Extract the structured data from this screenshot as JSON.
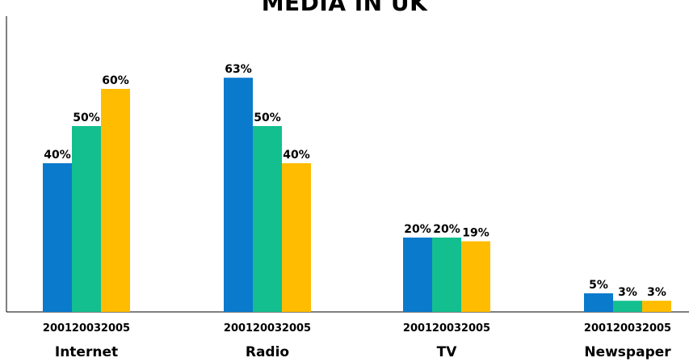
{
  "chart_data": {
    "type": "bar",
    "title": "MEDIA IN UK",
    "categories": [
      "Internet",
      "Radio",
      "TV",
      "Newspaper"
    ],
    "years": [
      "2001",
      "2003",
      "2005"
    ],
    "series": [
      {
        "name": "2001",
        "values": [
          40,
          63,
          20,
          5
        ],
        "labels": [
          "40%",
          "63%",
          "20%",
          "5%"
        ]
      },
      {
        "name": "2003",
        "values": [
          50,
          50,
          20,
          3
        ],
        "labels": [
          "50%",
          "50%",
          "20%",
          "3%"
        ]
      },
      {
        "name": "2005",
        "values": [
          60,
          40,
          19,
          3
        ],
        "labels": [
          "60%",
          "40%",
          "19%",
          "3%"
        ]
      }
    ],
    "colors": [
      "#0a7acd",
      "#13bf8f",
      "#ffbc00"
    ],
    "ylim": [
      0,
      70
    ],
    "xlabel": "",
    "ylabel": "",
    "grid": false,
    "legend": "none"
  }
}
